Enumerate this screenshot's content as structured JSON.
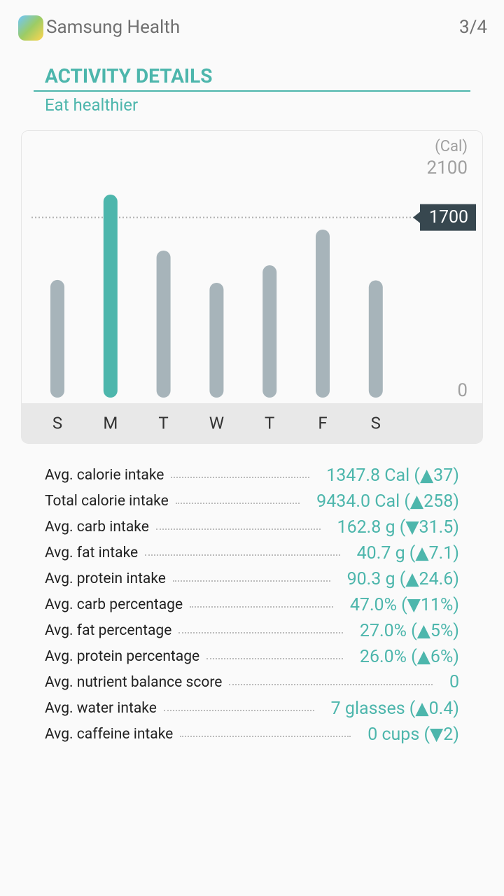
{
  "app": {
    "name": "Samsung Health",
    "page": "3/4"
  },
  "header": {
    "title": "ACTIVITY DETAILS",
    "subtitle": "Eat healthier"
  },
  "chart_data": {
    "type": "bar",
    "unit": "(Cal)",
    "categories": [
      "S",
      "M",
      "T",
      "W",
      "T",
      "F",
      "S"
    ],
    "values": [
      1110,
      1915,
      1387,
      1083,
      1248,
      1585,
      1106
    ],
    "colors": [
      "#a7b4ba",
      "#4db6ac",
      "#a7b4ba",
      "#a7b4ba",
      "#a7b4ba",
      "#a7b4ba",
      "#a7b4ba"
    ],
    "ylim": [
      0,
      2100
    ],
    "yticks": [
      0,
      2100
    ],
    "reference_line": 1700
  },
  "stats": [
    {
      "label": "Avg. calorie intake",
      "value": "1347.8 Cal (▲37)"
    },
    {
      "label": "Total calorie intake",
      "value": "9434.0 Cal (▲258)"
    },
    {
      "label": "Avg. carb intake",
      "value": "162.8 g (▼31.5)"
    },
    {
      "label": "Avg. fat intake",
      "value": "40.7 g (▲7.1)"
    },
    {
      "label": "Avg. protein intake",
      "value": "90.3 g (▲24.6)"
    },
    {
      "label": "Avg. carb percentage",
      "value": "47.0% (▼11%)"
    },
    {
      "label": "Avg. fat percentage",
      "value": "27.0% (▲5%)"
    },
    {
      "label": "Avg. protein percentage",
      "value": "26.0% (▲6%)"
    },
    {
      "label": "Avg. nutrient balance score",
      "value": "0"
    },
    {
      "label": "Avg. water intake",
      "value": "7 glasses (▲0.4)"
    },
    {
      "label": "Avg. caffeine intake",
      "value": "0 cups (▼2)"
    }
  ]
}
